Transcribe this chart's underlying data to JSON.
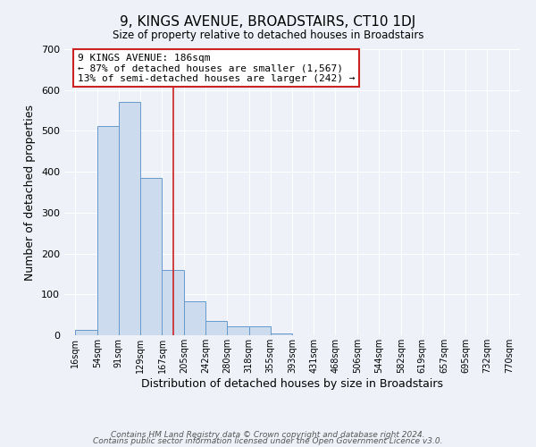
{
  "title": "9, KINGS AVENUE, BROADSTAIRS, CT10 1DJ",
  "subtitle": "Size of property relative to detached houses in Broadstairs",
  "xlabel": "Distribution of detached houses by size in Broadstairs",
  "ylabel": "Number of detached properties",
  "bin_edges": [
    16,
    54,
    91,
    129,
    167,
    205,
    242,
    280,
    318,
    355,
    393,
    431,
    468,
    506,
    544,
    582,
    619,
    657,
    695,
    732,
    770
  ],
  "bin_labels": [
    "16sqm",
    "54sqm",
    "91sqm",
    "129sqm",
    "167sqm",
    "205sqm",
    "242sqm",
    "280sqm",
    "318sqm",
    "355sqm",
    "393sqm",
    "431sqm",
    "468sqm",
    "506sqm",
    "544sqm",
    "582sqm",
    "619sqm",
    "657sqm",
    "695sqm",
    "732sqm",
    "770sqm"
  ],
  "counts": [
    14,
    511,
    570,
    385,
    160,
    83,
    35,
    22,
    22,
    5,
    0,
    0,
    0,
    0,
    0,
    0,
    0,
    0,
    0,
    0
  ],
  "bar_color": "#ccdcee",
  "bar_edge_color": "#6699cc",
  "property_line_x": 186,
  "property_line_color": "#cc2222",
  "annotation_title": "9 KINGS AVENUE: 186sqm",
  "annotation_line1": "← 87% of detached houses are smaller (1,567)",
  "annotation_line2": "13% of semi-detached houses are larger (242) →",
  "annotation_box_edgecolor": "#cc2222",
  "ylim": [
    0,
    700
  ],
  "yticks": [
    0,
    100,
    200,
    300,
    400,
    500,
    600,
    700
  ],
  "footer1": "Contains HM Land Registry data © Crown copyright and database right 2024.",
  "footer2": "Contains public sector information licensed under the Open Government Licence v3.0.",
  "bg_color": "#eef2f8",
  "plot_bg_color": "#eef2f8",
  "grid_color": "#ffffff"
}
